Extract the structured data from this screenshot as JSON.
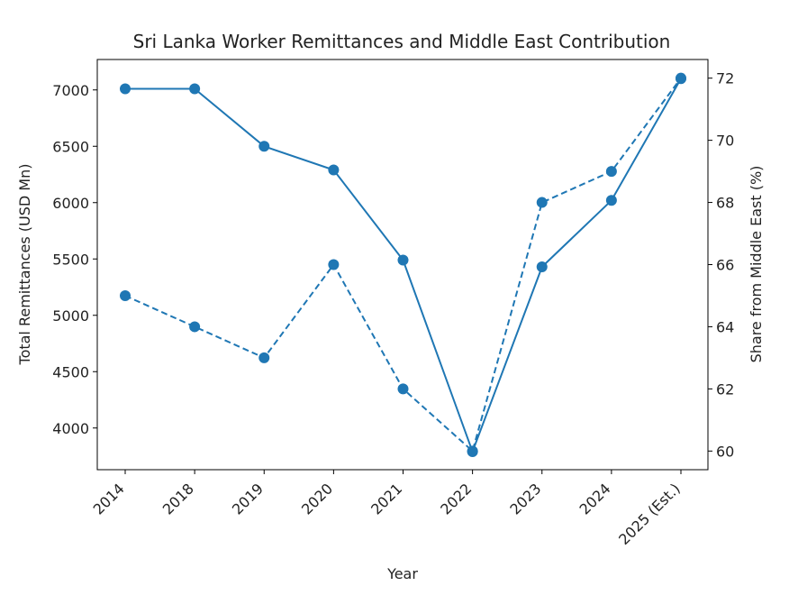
{
  "chart_data": {
    "type": "line",
    "title": "Sri Lanka Worker Remittances and Middle East Contribution",
    "xlabel": "Year",
    "ylabel_left": "Total Remittances (USD Mn)",
    "ylabel_right": "Share from Middle East (%)",
    "categories": [
      "2014",
      "2018",
      "2019",
      "2020",
      "2021",
      "2022",
      "2023",
      "2024",
      "2025 (Est.)"
    ],
    "y_left_ticks": [
      4000,
      4500,
      5000,
      5500,
      6000,
      6500,
      7000
    ],
    "y_left_range": [
      3630,
      7270
    ],
    "y_right_ticks": [
      60,
      62,
      64,
      66,
      68,
      70,
      72
    ],
    "y_right_range": [
      59.4,
      72.6
    ],
    "grid": false,
    "color": "#1f77b4",
    "series": [
      {
        "axis": "left",
        "line_style": "solid",
        "values": [
          7010,
          7010,
          6500,
          6290,
          5490,
          3790,
          5430,
          6020,
          7100
        ]
      },
      {
        "axis": "right",
        "line_style": "dashed",
        "values": [
          65,
          64,
          63,
          66,
          62,
          60,
          68,
          69,
          72
        ]
      }
    ]
  }
}
